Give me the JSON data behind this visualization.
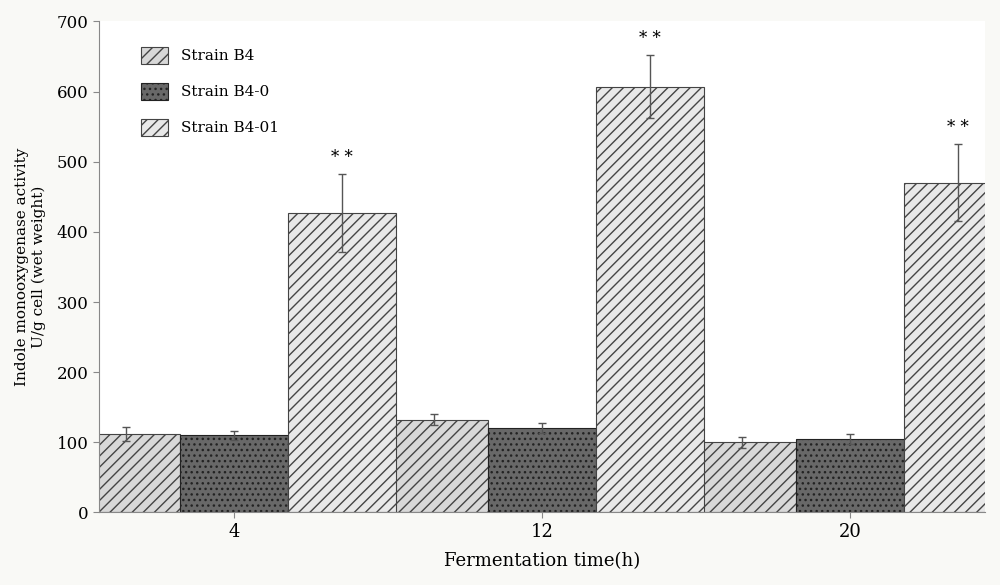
{
  "title": "",
  "xlabel": "Fermentation time(h)",
  "ylabel": "Indole monooxygenase activity\nU/g cell (wet weight)",
  "groups": [
    4,
    12,
    20
  ],
  "group_labels": [
    "4",
    "12",
    "20"
  ],
  "series": [
    {
      "name": "Strain B4",
      "values": [
        112,
        132,
        100
      ],
      "errors": [
        10,
        8,
        8
      ],
      "color": "#d8d8d8",
      "hatch": "///",
      "edgecolor": "#444444"
    },
    {
      "name": "Strain B4-0",
      "values": [
        110,
        120,
        105
      ],
      "errors": [
        6,
        7,
        7
      ],
      "color": "#686868",
      "hatch": "...",
      "edgecolor": "#222222"
    },
    {
      "name": "Strain B4-01",
      "values": [
        427,
        607,
        470
      ],
      "errors": [
        55,
        45,
        55
      ],
      "color": "#e8e8e8",
      "hatch": "///",
      "edgecolor": "#444444"
    }
  ],
  "significance_labels": [
    {
      "group_idx": 0,
      "series_idx": 2,
      "label": "* *"
    },
    {
      "group_idx": 1,
      "series_idx": 2,
      "label": "* *"
    },
    {
      "group_idx": 2,
      "series_idx": 2,
      "label": "* *"
    }
  ],
  "ylim": [
    0,
    700
  ],
  "yticks": [
    0,
    100,
    200,
    300,
    400,
    500,
    600,
    700
  ],
  "bar_width": 0.28,
  "background_color": "#ffffff",
  "fig_background_color": "#f9f9f6"
}
